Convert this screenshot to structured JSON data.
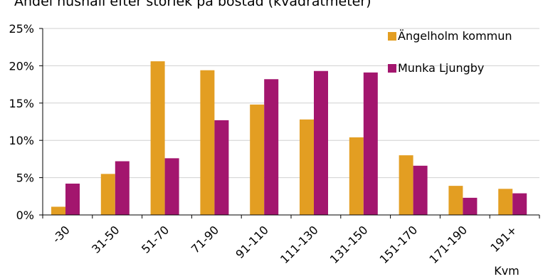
{
  "chart_data": {
    "type": "bar",
    "title": "Andel hushåll efter storlek på bostad (kvadratmeter)",
    "xlabel": "Kvm",
    "ylabel": "",
    "categories": [
      "-30",
      "31-50",
      "51-70",
      "71-90",
      "91-110",
      "111-130",
      "131-150",
      "151-170",
      "171-190",
      "191+"
    ],
    "series": [
      {
        "name": "Ängelholm kommun",
        "color": "#E39E22",
        "values": [
          1.1,
          5.5,
          20.6,
          19.4,
          14.8,
          12.8,
          10.4,
          8.0,
          3.9,
          3.5
        ]
      },
      {
        "name": "Munka Ljungby",
        "color": "#A3166E",
        "values": [
          4.2,
          7.2,
          7.6,
          12.7,
          18.2,
          19.3,
          19.1,
          6.6,
          2.3,
          2.9
        ]
      }
    ],
    "ylim": [
      0,
      25
    ],
    "yticks": [
      "0%",
      "5%",
      "10%",
      "15%",
      "20%",
      "25%"
    ],
    "ytick_values": [
      0,
      5,
      10,
      15,
      20,
      25
    ],
    "grid": true,
    "legend_position": "top-right"
  }
}
